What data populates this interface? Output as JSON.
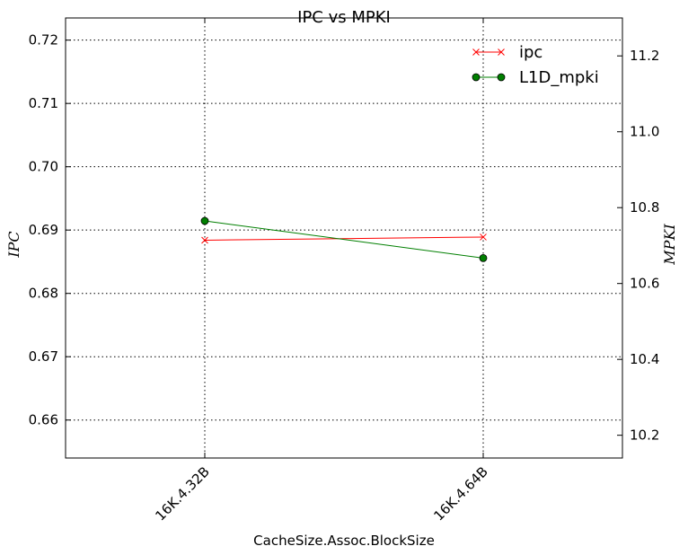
{
  "chart_data": {
    "type": "line",
    "title": "IPC vs MPKI",
    "xlabel": "CacheSize.Assoc.BlockSize",
    "ylabel_left": "IPC",
    "ylabel_right": "MPKI",
    "categories": [
      "16K.4.32B",
      "16K.4.64B"
    ],
    "ylim_left": [
      0.654,
      0.7235
    ],
    "yticks_left": [
      "0.66",
      "0.67",
      "0.68",
      "0.69",
      "0.70",
      "0.71",
      "0.72"
    ],
    "ylim_right": [
      10.14,
      11.3
    ],
    "yticks_right": [
      "10.2",
      "10.4",
      "10.6",
      "10.8",
      "11.0",
      "11.2"
    ],
    "grid": true,
    "legend_position": "top-right",
    "series": [
      {
        "name": "ipc",
        "axis": "left",
        "color": "#ff0000",
        "marker": "x",
        "values": [
          0.6884,
          0.6889
        ]
      },
      {
        "name": "L1D_mpki",
        "axis": "right",
        "color": "#007f00",
        "marker": "o",
        "values": [
          10.765,
          10.667
        ]
      }
    ]
  }
}
